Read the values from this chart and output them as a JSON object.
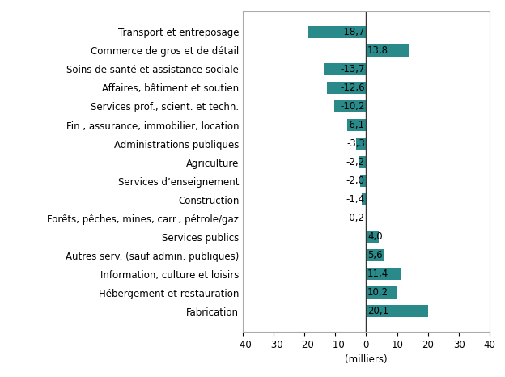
{
  "categories": [
    "Transport et entreposage",
    "Commerce de gros et de détail",
    "Soins de santé et assistance sociale",
    "Affaires, bâtiment et soutien",
    "Services prof., scient. et techn.",
    "Fin., assurance, immobilier, location",
    "Administrations publiques",
    "Agriculture",
    "Services d’enseignement",
    "Construction",
    "Forêts, pêches, mines, carr., pétrole/gaz",
    "Services publics",
    "Autres serv. (sauf admin. publiques)",
    "Information, culture et loisirs",
    "Hébergement et restauration",
    "Fabrication"
  ],
  "values": [
    -18.7,
    13.8,
    -13.7,
    -12.6,
    -10.2,
    -6.1,
    -3.3,
    -2.2,
    -2.0,
    -1.4,
    -0.2,
    4.0,
    5.6,
    11.4,
    10.2,
    20.1
  ],
  "bar_color": "#2a8a8a",
  "xlabel": "(milliers)",
  "xlim": [
    -40,
    40
  ],
  "xticks": [
    -40,
    -30,
    -20,
    -10,
    0,
    10,
    20,
    30,
    40
  ],
  "background_color": "#ffffff",
  "label_fontsize": 8.5,
  "value_fontsize": 8.5,
  "tick_fontsize": 8.5
}
